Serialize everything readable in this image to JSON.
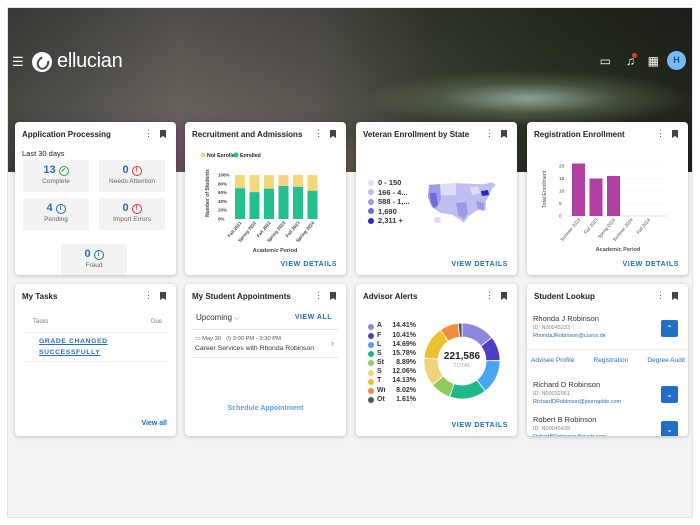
{
  "header": {
    "brand": "ellucian",
    "avatar_initial": "H",
    "icons": [
      "menu-icon",
      "calendar-icon",
      "bell-icon",
      "apps-grid-icon"
    ]
  },
  "colors": {
    "accent": "#1d6dc1",
    "enrolled": "#22bf8f",
    "not_enrolled": "#f3d77a",
    "registration": "#b23fa3"
  },
  "app_processing": {
    "title": "Application Processing",
    "period": "Last 30 days",
    "stats": [
      {
        "value": "13",
        "label": "Complete",
        "icon": "check-circle-icon"
      },
      {
        "value": "0",
        "label": "Needs Attention",
        "icon": "alert-circle-icon"
      },
      {
        "value": "4",
        "label": "Pending",
        "icon": "info-icon"
      },
      {
        "value": "0",
        "label": "Import Errors",
        "icon": "alert-circle-icon"
      },
      {
        "value": "0",
        "label": "Fraud",
        "icon": "info-icon"
      }
    ]
  },
  "view_details": "VIEW DETAILS",
  "chart_data": [
    {
      "type": "bar",
      "stacked": true,
      "title": "Recruitment and Admissions",
      "categories": [
        "Fall 2021",
        "Spring 2022",
        "Fall 2022",
        "Spring 2023",
        "Fall 2023",
        "Spring 2024"
      ],
      "series": [
        {
          "name": "Enrolled",
          "values": [
            70,
            61,
            69,
            75,
            73,
            64
          ]
        },
        {
          "name": "Not Enrolled",
          "values": [
            30,
            39,
            31,
            25,
            27,
            36
          ]
        }
      ],
      "xlabel": "Academic Period",
      "ylabel": "Number of Students",
      "yticks": [
        "0%",
        "20%",
        "40%",
        "60%",
        "80%",
        "100%"
      ],
      "ylim": [
        0,
        100
      ],
      "legend": "top-left"
    },
    {
      "type": "bar",
      "title": "Registration Enrollment",
      "categories": [
        "Summer 2023",
        "Fall 2023",
        "Spring 2024",
        "Summer 2024",
        "Fall 2024"
      ],
      "values": [
        21,
        15,
        16,
        0,
        0
      ],
      "xlabel": "Academic Period",
      "ylabel": "Total Enrollment",
      "yticks": [
        "0",
        "5",
        "10",
        "15",
        "20"
      ],
      "ylim": [
        0,
        22
      ]
    },
    {
      "type": "pie",
      "donut": true,
      "title": "Advisor Alerts",
      "total": "221,586",
      "total_label": "TOTAL",
      "slices": [
        {
          "label": "A",
          "value": 14.41,
          "pct": "14.41%",
          "color": "#8d89e0"
        },
        {
          "label": "F",
          "value": 10.41,
          "pct": "10.41%",
          "color": "#4b3fc9"
        },
        {
          "label": "L",
          "value": 14.69,
          "pct": "14.69%",
          "color": "#4aa5f5"
        },
        {
          "label": "S",
          "value": 15.78,
          "pct": "15.78%",
          "color": "#1fb88a"
        },
        {
          "label": "St",
          "value": 8.89,
          "pct": "8.89%",
          "color": "#8dcc5a"
        },
        {
          "label": "S",
          "value": 12.06,
          "pct": "12.06%",
          "color": "#f1d37c"
        },
        {
          "label": "T",
          "value": 14.13,
          "pct": "14.13%",
          "color": "#ecc12f"
        },
        {
          "label": "Wi",
          "value": 8.02,
          "pct": "8.02%",
          "color": "#f58a3a"
        },
        {
          "label": "Ot",
          "value": 1.61,
          "pct": "1.61%",
          "color": "#555555"
        }
      ]
    }
  ],
  "veteran": {
    "title": "Veteran Enrollment by State",
    "legend": [
      {
        "label": "0 - 150",
        "color": "#dcdcf6"
      },
      {
        "label": "166 - 4...",
        "color": "#bcbcf0"
      },
      {
        "label": "588 - 1,...",
        "color": "#9c9ae6"
      },
      {
        "label": "1,690",
        "color": "#6e69dc"
      },
      {
        "label": "2,311 +",
        "color": "#2c25c8"
      }
    ]
  },
  "tasks": {
    "title": "My Tasks",
    "col_tasks": "Tasks",
    "col_due": "Due",
    "items": [
      "GRADE CHANGED",
      "SUCCESSFULLY"
    ],
    "view_all": "View all"
  },
  "appointments": {
    "title": "My Student Appointments",
    "filter": "Upcoming",
    "view_all": "VIEW ALL",
    "items": [
      {
        "date": "May 30",
        "time": "3:00 PM - 3:30 PM",
        "title": "Career Services with Rhonda Robinson"
      }
    ],
    "schedule": "Schedule Appointment"
  },
  "lookup": {
    "title": "Student Lookup",
    "actions": [
      "Advisee Profile",
      "Registration",
      "Degree Audit"
    ],
    "students": [
      {
        "name": "Rhonda J Robinson",
        "id": "ID: N00045233",
        "email": "RhondaJRobinson@cuvox.de"
      },
      {
        "name": "Richard D Robinson",
        "id": "ID: N00032961",
        "email": "RichardDRobinson@jourrapide.com"
      },
      {
        "name": "Robert B Robinson",
        "id": "ID: N00045439",
        "email": "RobertBRobinson@gustr.com"
      }
    ]
  }
}
